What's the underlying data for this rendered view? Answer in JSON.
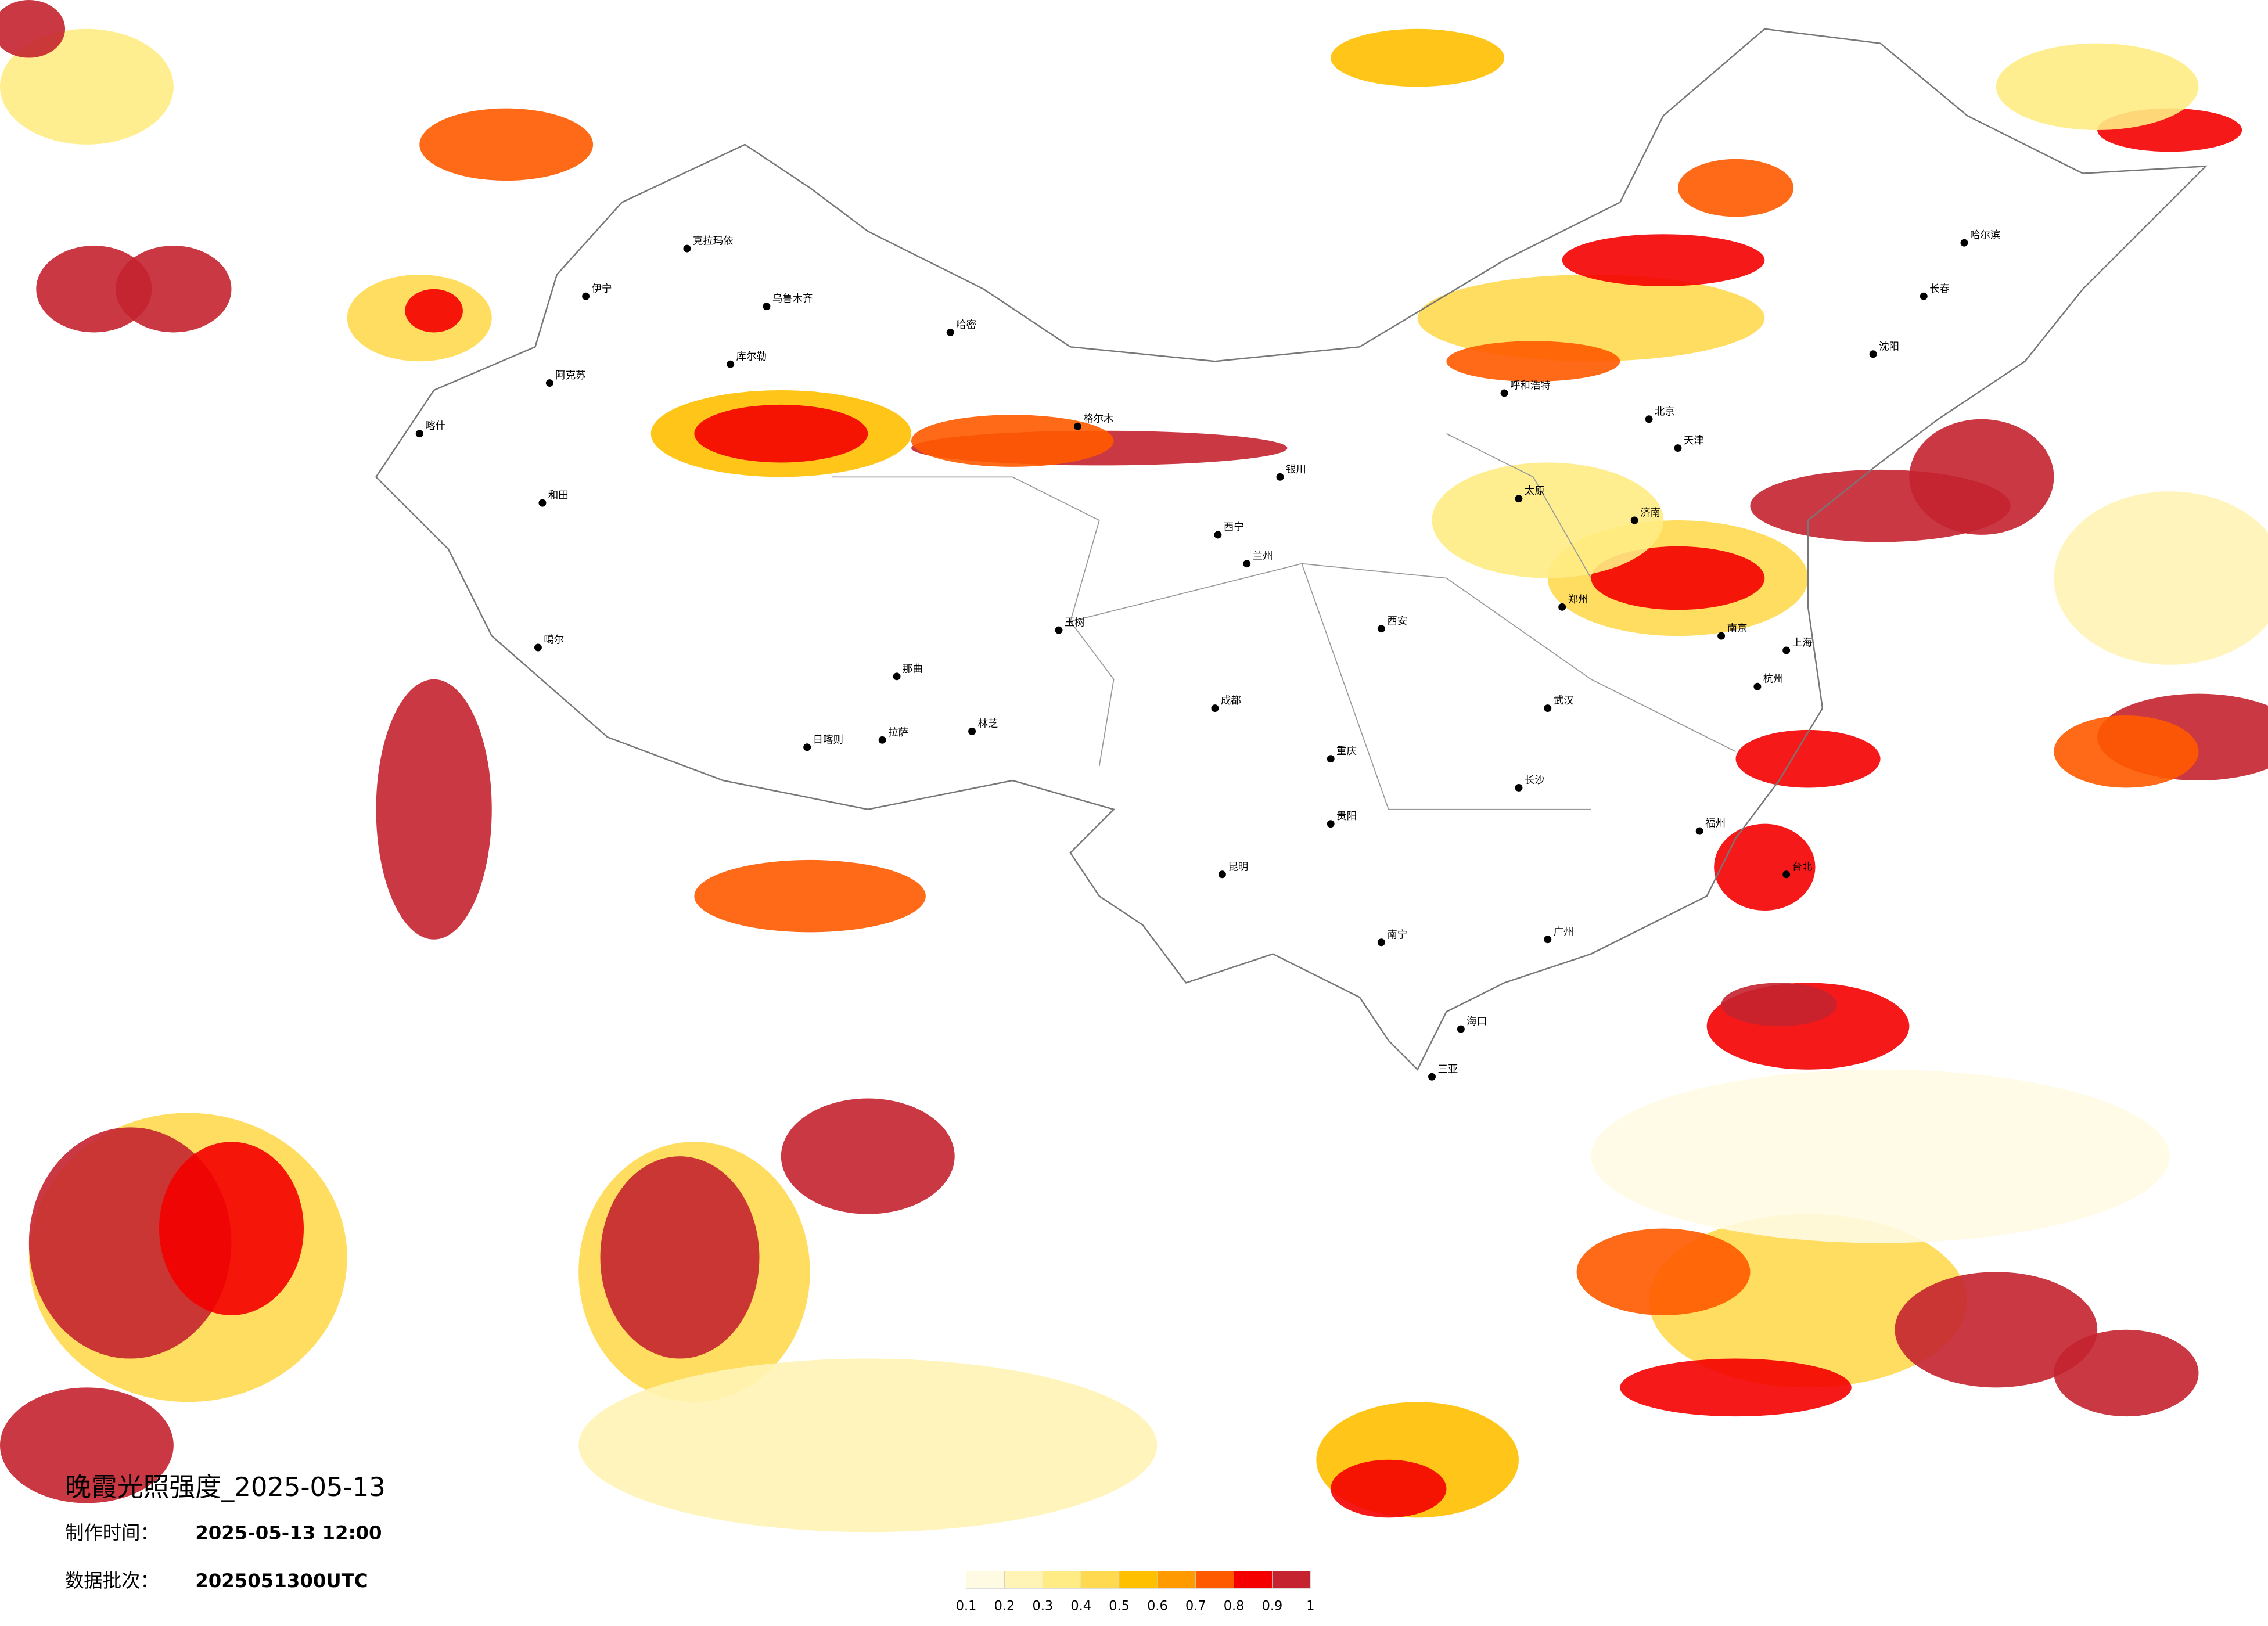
{
  "header": {
    "title": "晚霞光照强度_2025-05-13",
    "made_label": "制作时间：",
    "made_time": "2025-05-13 12:00",
    "batch_label": "数据批次：",
    "batch": "2025051300UTC"
  },
  "legend": {
    "ticks": [
      0.1,
      0.2,
      0.3,
      0.4,
      0.5,
      0.6,
      0.7,
      0.8,
      0.9,
      1
    ],
    "colors": [
      "#fffbe3",
      "#fff4b5",
      "#ffec84",
      "#ffd94f",
      "#ffc000",
      "#ff9b00",
      "#ff5a00",
      "#f40000",
      "#c4232f"
    ]
  },
  "cities": [
    "克拉玛依",
    "乌鲁木齐",
    "伊宁",
    "阿克苏",
    "喀什",
    "和田",
    "库尔勒",
    "哈密",
    "格尔木",
    "拉萨",
    "日喀则",
    "林芝",
    "那曲",
    "噶尔",
    "玉树",
    "西宁",
    "兰州",
    "银川",
    "呼和浩特",
    "北京",
    "天津",
    "哈尔滨",
    "长春",
    "沈阳",
    "郑州",
    "武汉",
    "成都",
    "重庆",
    "昆明",
    "贵阳",
    "南宁",
    "广州",
    "海口",
    "福州",
    "上海",
    "南京",
    "杭州",
    "长沙",
    "西安",
    "太原",
    "济南",
    "台北",
    "三亚"
  ]
}
